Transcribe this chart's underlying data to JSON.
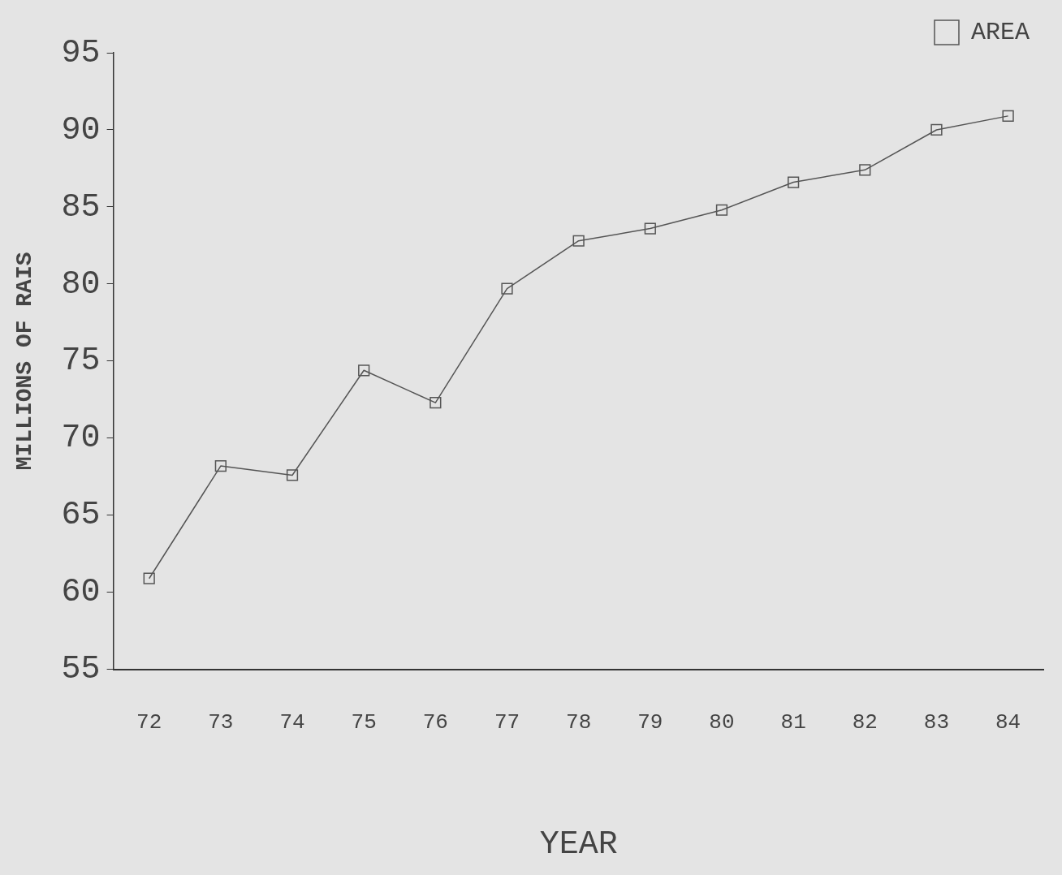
{
  "chart_data": {
    "type": "line",
    "xlabel": "YEAR",
    "ylabel": "MILLIONS OF RAIS",
    "categories": [
      "72",
      "73",
      "74",
      "75",
      "76",
      "77",
      "78",
      "79",
      "80",
      "81",
      "82",
      "83",
      "84"
    ],
    "series": [
      {
        "name": "AREA",
        "color": "#555555",
        "values": [
          60.9,
          68.2,
          67.6,
          74.4,
          72.3,
          79.7,
          82.8,
          83.6,
          84.8,
          86.6,
          87.4,
          90.0,
          90.9
        ]
      }
    ],
    "ylim": [
      55,
      95
    ],
    "yticks": [
      55,
      60,
      65,
      70,
      75,
      80,
      85,
      90,
      95
    ],
    "grid": false,
    "legend": "top right",
    "marker": "square",
    "line_style": "solid"
  }
}
